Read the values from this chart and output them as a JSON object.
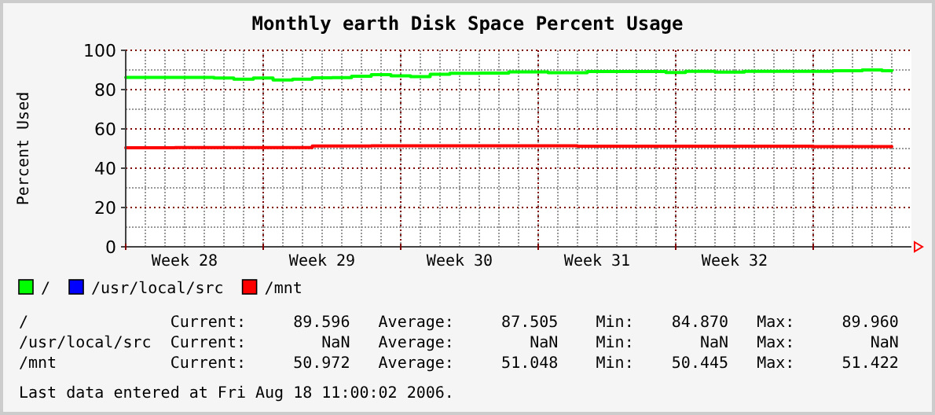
{
  "chart_data": {
    "type": "line",
    "title": "Monthly earth Disk Space Percent Usage",
    "ylabel": "Percent Used",
    "xlim": [
      "2006-07-10",
      "2006-08-19"
    ],
    "xticks": [
      {
        "value": "2006-07-10",
        "label": null
      },
      {
        "value": "2006-07-13",
        "label": "Week 28"
      },
      {
        "value": "2006-07-17",
        "label": null
      },
      {
        "value": "2006-07-20",
        "label": "Week 29"
      },
      {
        "value": "2006-07-24",
        "label": null
      },
      {
        "value": "2006-07-27",
        "label": "Week 30"
      },
      {
        "value": "2006-07-31",
        "label": null
      },
      {
        "value": "2006-08-03",
        "label": "Week 31"
      },
      {
        "value": "2006-08-07",
        "label": null
      },
      {
        "value": "2006-08-10",
        "label": "Week 32"
      },
      {
        "value": "2006-08-14",
        "label": null
      }
    ],
    "ylim": [
      0,
      100
    ],
    "yticks": [
      0,
      20,
      40,
      60,
      80,
      100
    ],
    "grid": true,
    "legend": "bottom",
    "series": [
      {
        "name": "/",
        "color": "#00ff00",
        "x": [
          "2006-07-10",
          "2006-07-14",
          "2006-07-15",
          "2006-07-16",
          "2006-07-17",
          "2006-07-18",
          "2006-07-19",
          "2006-07-20",
          "2006-07-21",
          "2006-07-22",
          "2006-07-23",
          "2006-07-24",
          "2006-07-25",
          "2006-07-26",
          "2006-07-27",
          "2006-07-29",
          "2006-07-30",
          "2006-08-02",
          "2006-08-03",
          "2006-08-06",
          "2006-08-07",
          "2006-08-08",
          "2006-08-10",
          "2006-08-11",
          "2006-08-14",
          "2006-08-16",
          "2006-08-17",
          "2006-08-18"
        ],
        "values": [
          86.2,
          86.2,
          85.9,
          85.3,
          85.9,
          84.9,
          85.3,
          86.0,
          86.1,
          86.8,
          87.6,
          87.0,
          86.6,
          87.8,
          88.3,
          88.4,
          89.0,
          88.6,
          89.2,
          89.2,
          88.7,
          89.3,
          88.9,
          89.3,
          89.3,
          89.6,
          90.0,
          89.6
        ]
      },
      {
        "name": "/usr/local/src",
        "color": "#0000ff"
      },
      {
        "name": "/mnt",
        "color": "#ff0000",
        "x": [
          "2006-07-10",
          "2006-07-15",
          "2006-07-19",
          "2006-07-20",
          "2006-07-25",
          "2006-08-10",
          "2006-08-18"
        ],
        "values": [
          50.4,
          50.5,
          50.5,
          51.3,
          51.4,
          51.2,
          51.0
        ]
      }
    ],
    "annotations": [
      "/               Current:     89.596   Average:     87.505    Min:    84.870   Max:     89.960",
      "/usr/local/src  Current:        NaN   Average:        NaN    Min:       NaN   Max:        NaN",
      "/mnt            Current:     50.972   Average:     51.048    Min:    50.445   Max:     51.422",
      "Last data entered at Fri Aug 18 11:00:02 2006."
    ]
  }
}
